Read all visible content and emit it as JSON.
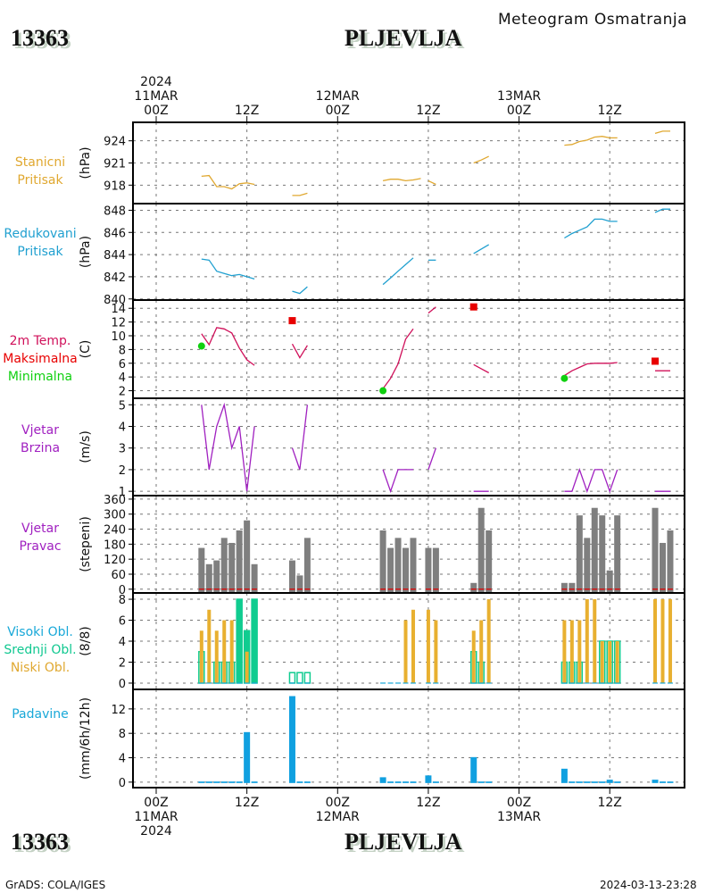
{
  "header": {
    "station_id": "13363",
    "station_name": "PLJEVLJA",
    "subtitle": "Meteogram Osmatranja"
  },
  "footer": {
    "left": "GrADS: COLA/IGES",
    "right": "2024-03-13-23:28"
  },
  "time_axis": {
    "top_labels": [
      {
        "hour": 0,
        "lines": [
          "2024",
          "11MAR",
          "00Z"
        ]
      },
      {
        "hour": 12,
        "lines": [
          "12Z"
        ]
      },
      {
        "hour": 24,
        "lines": [
          "12MAR",
          "00Z"
        ]
      },
      {
        "hour": 36,
        "lines": [
          "12Z"
        ]
      },
      {
        "hour": 48,
        "lines": [
          "13MAR",
          "00Z"
        ]
      },
      {
        "hour": 60,
        "lines": [
          "12Z"
        ]
      }
    ],
    "bottom_labels": [
      {
        "hour": 0,
        "lines": [
          "00Z",
          "11MAR",
          "2024"
        ]
      },
      {
        "hour": 12,
        "lines": [
          "12Z"
        ]
      },
      {
        "hour": 24,
        "lines": [
          "00Z",
          "12MAR"
        ]
      },
      {
        "hour": 36,
        "lines": [
          "12Z"
        ]
      },
      {
        "hour": 48,
        "lines": [
          "00Z",
          "13MAR"
        ]
      },
      {
        "hour": 60,
        "lines": [
          "12Z"
        ]
      }
    ]
  },
  "chart_data": [
    {
      "id": "station-pressure",
      "type": "line",
      "labels": [
        {
          "text": "Stanicni",
          "color": "#e0a830"
        },
        {
          "text": "Pritisak",
          "color": "#e0a830"
        }
      ],
      "unit": "(hPa)",
      "color": "#e0a830",
      "yticks": [
        918,
        921,
        924
      ],
      "ylim": [
        915.5,
        926.5
      ],
      "segments": [
        [
          [
            6,
            919.2
          ],
          [
            7,
            919.3
          ],
          [
            8,
            917.8
          ],
          [
            9,
            917.8
          ],
          [
            10,
            917.5
          ],
          [
            11,
            918.2
          ],
          [
            12,
            918.3
          ],
          [
            13,
            918.1
          ]
        ],
        [
          [
            18,
            916.6
          ],
          [
            19,
            916.6
          ],
          [
            20,
            916.9
          ]
        ],
        [
          [
            30,
            918.6
          ],
          [
            31,
            918.8
          ],
          [
            32,
            918.8
          ],
          [
            33,
            918.6
          ],
          [
            34,
            918.7
          ],
          [
            35,
            918.9
          ]
        ],
        [
          [
            36,
            918.6
          ],
          [
            37,
            918.1
          ]
        ],
        [
          [
            42,
            921.0
          ],
          [
            43,
            921.4
          ],
          [
            44,
            921.9
          ]
        ],
        [
          [
            54,
            923.4
          ],
          [
            55,
            923.5
          ],
          [
            56,
            923.9
          ],
          [
            57,
            924.1
          ],
          [
            58,
            924.5
          ],
          [
            59,
            924.6
          ],
          [
            60,
            924.4
          ],
          [
            61,
            924.4
          ]
        ],
        [
          [
            66,
            925.0
          ],
          [
            67,
            925.3
          ],
          [
            68,
            925.3
          ]
        ]
      ]
    },
    {
      "id": "reduced-pressure",
      "type": "line",
      "labels": [
        {
          "text": "Redukovani",
          "color": "#20a0d0"
        },
        {
          "text": "Pritisak",
          "color": "#20a0d0"
        }
      ],
      "unit": "(hPa)",
      "color": "#20a0d0",
      "yticks": [
        840,
        842,
        844,
        846,
        848
      ],
      "ylim": [
        839.9,
        848.6
      ],
      "segments": [
        [
          [
            6,
            843.6
          ],
          [
            7,
            843.5
          ],
          [
            8,
            842.5
          ],
          [
            9,
            842.3
          ],
          [
            10,
            842.1
          ],
          [
            11,
            842.2
          ],
          [
            12,
            842.0
          ],
          [
            13,
            841.8
          ]
        ],
        [
          [
            18,
            840.7
          ],
          [
            19,
            840.5
          ],
          [
            20,
            841.1
          ]
        ],
        [
          [
            30,
            841.3
          ],
          [
            31,
            841.9
          ],
          [
            32,
            842.5
          ],
          [
            33,
            843.1
          ],
          [
            34,
            843.7
          ]
        ],
        [
          [
            36,
            843.5
          ],
          [
            37,
            843.5
          ]
        ],
        [
          [
            42,
            844.1
          ],
          [
            43,
            844.5
          ],
          [
            44,
            844.9
          ]
        ],
        [
          [
            54,
            845.5
          ],
          [
            55,
            845.9
          ],
          [
            56,
            846.2
          ],
          [
            57,
            846.5
          ],
          [
            58,
            847.2
          ],
          [
            59,
            847.2
          ],
          [
            60,
            847.0
          ],
          [
            61,
            847.0
          ]
        ],
        [
          [
            66,
            847.8
          ],
          [
            67,
            848.1
          ],
          [
            68,
            848.1
          ]
        ]
      ]
    },
    {
      "id": "temperature",
      "type": "line",
      "labels": [
        {
          "text": "2m Temp.",
          "color": "#d0105a"
        },
        {
          "text": "Maksimalna",
          "color": "#e80000"
        },
        {
          "text": "Minimalna",
          "color": "#10d010"
        }
      ],
      "unit": "(C)",
      "color": "#d0105a",
      "max_color": "#e80000",
      "min_color": "#10d010",
      "yticks": [
        2,
        4,
        6,
        8,
        10,
        12,
        14
      ],
      "ylim": [
        0.9,
        15.2
      ],
      "segments": [
        [
          [
            6,
            10.3
          ],
          [
            7,
            8.7
          ],
          [
            8,
            11.2
          ],
          [
            9,
            11.0
          ],
          [
            10,
            10.4
          ],
          [
            11,
            8.2
          ],
          [
            12,
            6.5
          ],
          [
            13,
            5.7
          ]
        ],
        [
          [
            18,
            8.8
          ],
          [
            19,
            6.8
          ],
          [
            20,
            8.6
          ]
        ],
        [
          [
            30,
            2.3
          ],
          [
            31,
            3.8
          ],
          [
            32,
            5.9
          ],
          [
            33,
            9.5
          ],
          [
            34,
            11.0
          ]
        ],
        [
          [
            36,
            13.3
          ],
          [
            37,
            14.2
          ]
        ],
        [
          [
            42,
            5.8
          ],
          [
            43,
            5.2
          ],
          [
            44,
            4.6
          ]
        ],
        [
          [
            54,
            4.2
          ],
          [
            55,
            4.9
          ],
          [
            56,
            5.4
          ],
          [
            57,
            5.9
          ],
          [
            58,
            6.0
          ],
          [
            59,
            6.0
          ],
          [
            60,
            6.0
          ],
          [
            61,
            6.1
          ]
        ],
        [
          [
            66,
            4.9
          ],
          [
            67,
            4.9
          ],
          [
            68,
            4.9
          ]
        ]
      ],
      "maxima": [
        [
          18,
          12.2
        ],
        [
          42,
          14.2
        ],
        [
          66,
          6.3
        ]
      ],
      "minima": [
        [
          6,
          8.5
        ],
        [
          30,
          2.0
        ],
        [
          54,
          3.8
        ]
      ]
    },
    {
      "id": "wind-speed",
      "type": "line",
      "labels": [
        {
          "text": "Vjetar",
          "color": "#a020c0"
        },
        {
          "text": "Brzina",
          "color": "#a020c0"
        }
      ],
      "unit": "(m/s)",
      "color": "#a020c0",
      "yticks": [
        1,
        2,
        3,
        4,
        5
      ],
      "ylim": [
        0.8,
        5.3
      ],
      "segments": [
        [
          [
            6,
            5
          ],
          [
            7,
            2
          ],
          [
            8,
            4
          ],
          [
            9,
            5
          ],
          [
            10,
            3
          ],
          [
            11,
            4
          ],
          [
            12,
            1
          ],
          [
            13,
            4
          ]
        ],
        [
          [
            18,
            3
          ],
          [
            19,
            2
          ],
          [
            20,
            5
          ]
        ],
        [
          [
            30,
            2
          ],
          [
            31,
            1
          ],
          [
            32,
            2
          ],
          [
            33,
            2
          ],
          [
            34,
            2
          ]
        ],
        [
          [
            36,
            2
          ],
          [
            37,
            3
          ]
        ],
        [
          [
            42,
            1
          ],
          [
            43,
            1
          ],
          [
            44,
            1
          ]
        ],
        [
          [
            54,
            1
          ],
          [
            55,
            1
          ],
          [
            56,
            2
          ],
          [
            57,
            1
          ],
          [
            58,
            2
          ],
          [
            59,
            2
          ],
          [
            60,
            1
          ],
          [
            61,
            2
          ]
        ],
        [
          [
            66,
            1
          ],
          [
            67,
            1
          ],
          [
            68,
            1
          ]
        ]
      ]
    },
    {
      "id": "wind-direction",
      "type": "bar",
      "labels": [
        {
          "text": "Vjetar",
          "color": "#a020c0"
        },
        {
          "text": "Pravac",
          "color": "#a020c0"
        }
      ],
      "unit": "(stepeni)",
      "color": "#7f7f7f",
      "calm_color": "#e00000",
      "yticks": [
        0,
        60,
        120,
        180,
        240,
        300,
        360
      ],
      "ylim": [
        -15,
        374
      ],
      "points": [
        [
          6,
          165
        ],
        [
          7,
          100
        ],
        [
          8,
          115
        ],
        [
          9,
          205
        ],
        [
          10,
          185
        ],
        [
          11,
          235
        ],
        [
          12,
          275
        ],
        [
          13,
          100
        ],
        [
          18,
          115
        ],
        [
          19,
          55
        ],
        [
          20,
          205
        ],
        [
          30,
          235
        ],
        [
          31,
          165
        ],
        [
          32,
          205
        ],
        [
          33,
          165
        ],
        [
          34,
          205
        ],
        [
          36,
          165
        ],
        [
          37,
          165
        ],
        [
          42,
          25
        ],
        [
          43,
          325
        ],
        [
          44,
          235
        ],
        [
          54,
          25
        ],
        [
          55,
          25
        ],
        [
          56,
          295
        ],
        [
          57,
          205
        ],
        [
          58,
          325
        ],
        [
          59,
          295
        ],
        [
          60,
          75
        ],
        [
          61,
          295
        ],
        [
          66,
          325
        ],
        [
          67,
          185
        ],
        [
          68,
          235
        ]
      ]
    },
    {
      "id": "clouds",
      "type": "bar",
      "labels": [
        {
          "text": "Visoki Obl.",
          "color": "#18a8d8"
        },
        {
          "text": "Srednji Obl.",
          "color": "#10c890"
        },
        {
          "text": "Niski Obl.",
          "color": "#e0a830"
        }
      ],
      "unit": "(8/8)",
      "low_color": "#e8b030",
      "mid_color": "#10cc90",
      "high_color": "#18a8d8",
      "yticks": [
        0,
        2,
        4,
        6,
        8
      ],
      "ylim": [
        -0.6,
        8.6
      ],
      "points": [
        {
          "h": 6,
          "low": 5,
          "mid": 3
        },
        {
          "h": 7,
          "low": 7,
          "mid": 0
        },
        {
          "h": 8,
          "low": 5,
          "mid": 2
        },
        {
          "h": 9,
          "low": 6,
          "mid": 2
        },
        {
          "h": 10,
          "low": 6,
          "mid": 2
        },
        {
          "h": 11,
          "low": 0,
          "mid": 8
        },
        {
          "h": 12,
          "low": 3,
          "mid": 5
        },
        {
          "h": 13,
          "low": 0,
          "mid": 8
        },
        {
          "h": 18,
          "low": 0,
          "mid": 1
        },
        {
          "h": 19,
          "low": 0,
          "mid": 1
        },
        {
          "h": 20,
          "low": 0,
          "mid": 1
        },
        {
          "h": 30,
          "low": 0,
          "mid": 0
        },
        {
          "h": 31,
          "low": 0,
          "mid": 0
        },
        {
          "h": 32,
          "low": 0,
          "mid": 0
        },
        {
          "h": 33,
          "low": 6,
          "mid": 0
        },
        {
          "h": 34,
          "low": 7,
          "mid": 0
        },
        {
          "h": 36,
          "low": 7,
          "mid": 0
        },
        {
          "h": 37,
          "low": 6,
          "mid": 0
        },
        {
          "h": 42,
          "low": 5,
          "mid": 3
        },
        {
          "h": 43,
          "low": 6,
          "mid": 2
        },
        {
          "h": 44,
          "low": 8,
          "mid": 0
        },
        {
          "h": 54,
          "low": 6,
          "mid": 2
        },
        {
          "h": 55,
          "low": 6,
          "mid": 2
        },
        {
          "h": 56,
          "low": 6,
          "mid": 2
        },
        {
          "h": 57,
          "low": 8,
          "mid": 0
        },
        {
          "h": 58,
          "low": 8,
          "mid": 0
        },
        {
          "h": 59,
          "low": 4,
          "mid": 4
        },
        {
          "h": 60,
          "low": 4,
          "mid": 4
        },
        {
          "h": 61,
          "low": 4,
          "mid": 4
        },
        {
          "h": 66,
          "low": 8,
          "mid": 0
        },
        {
          "h": 67,
          "low": 8,
          "mid": 0
        },
        {
          "h": 68,
          "low": 8,
          "mid": 0
        }
      ]
    },
    {
      "id": "precipitation",
      "type": "bar",
      "labels": [
        {
          "text": "Padavine",
          "color": "#18a8d8"
        }
      ],
      "unit": "(mm/6h/12h)",
      "color": "#10a0e0",
      "yticks": [
        0,
        4,
        8,
        12
      ],
      "ylim": [
        -0.9,
        15.2
      ],
      "points": [
        [
          6,
          0.1
        ],
        [
          7,
          0.1
        ],
        [
          8,
          0.1
        ],
        [
          9,
          0.1
        ],
        [
          10,
          0.1
        ],
        [
          11,
          0.1
        ],
        [
          12,
          8.2
        ],
        [
          13,
          0.1
        ],
        [
          18,
          14.1
        ],
        [
          19,
          0.1
        ],
        [
          20,
          0.1
        ],
        [
          30,
          0.8
        ],
        [
          31,
          0.1
        ],
        [
          32,
          0.1
        ],
        [
          33,
          0.1
        ],
        [
          34,
          0.1
        ],
        [
          36,
          1.1
        ],
        [
          37,
          0.1
        ],
        [
          42,
          4.1
        ],
        [
          43,
          0.1
        ],
        [
          44,
          0.1
        ],
        [
          54,
          2.2
        ],
        [
          55,
          0.1
        ],
        [
          56,
          0.1
        ],
        [
          57,
          0.1
        ],
        [
          58,
          0.1
        ],
        [
          59,
          0.1
        ],
        [
          60,
          0.4
        ],
        [
          61,
          0.1
        ],
        [
          66,
          0.4
        ],
        [
          67,
          0.1
        ],
        [
          68,
          0.1
        ]
      ]
    }
  ]
}
